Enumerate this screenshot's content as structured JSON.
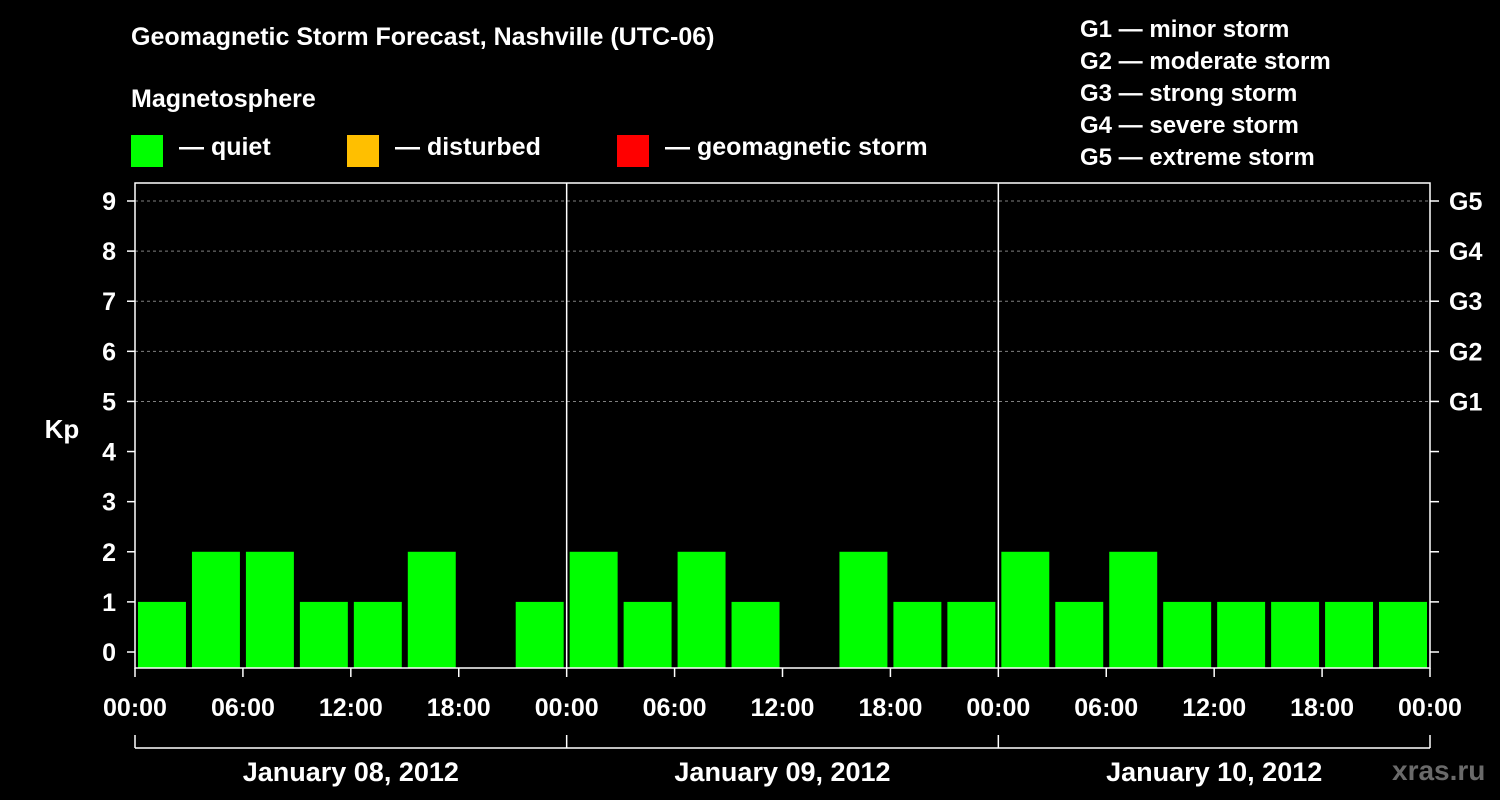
{
  "title": "Geomagnetic Storm Forecast, Nashville (UTC-06)",
  "subtitle": "Magnetosphere",
  "legend": [
    {
      "label": "— quiet",
      "color": "#00ff00"
    },
    {
      "label": "— disturbed",
      "color": "#ffbf00"
    },
    {
      "label": "— geomagnetic storm",
      "color": "#ff0000"
    }
  ],
  "storm_scale": [
    "G1 — minor storm",
    "G2 — moderate storm",
    "G3 — strong storm",
    "G4 — severe storm",
    "G5 — extreme storm"
  ],
  "watermark": "xras.ru",
  "chart_data": {
    "type": "bar",
    "ylabel": "Kp",
    "ylim": [
      0,
      9
    ],
    "yticks": [
      "0",
      "1",
      "2",
      "3",
      "4",
      "5",
      "6",
      "7",
      "8",
      "9"
    ],
    "right_axis_labels": [
      {
        "kp": 5,
        "label": "G1"
      },
      {
        "kp": 6,
        "label": "G2"
      },
      {
        "kp": 7,
        "label": "G3"
      },
      {
        "kp": 8,
        "label": "G4"
      },
      {
        "kp": 9,
        "label": "G5"
      }
    ],
    "grid": true,
    "bar_color": "#00ff00",
    "x_tick_labels": [
      "00:00",
      "06:00",
      "12:00",
      "18:00",
      "00:00",
      "06:00",
      "12:00",
      "18:00",
      "00:00",
      "06:00",
      "12:00",
      "18:00",
      "00:00"
    ],
    "days": [
      {
        "label": "January 08, 2012",
        "values": [
          1,
          2,
          2,
          1,
          1,
          2,
          0,
          1
        ]
      },
      {
        "label": "January 09, 2012",
        "values": [
          2,
          1,
          2,
          1,
          0,
          2,
          1,
          1
        ]
      },
      {
        "label": "January 10, 2012",
        "values": [
          2,
          1,
          2,
          1,
          1,
          1,
          1,
          1
        ]
      }
    ]
  }
}
